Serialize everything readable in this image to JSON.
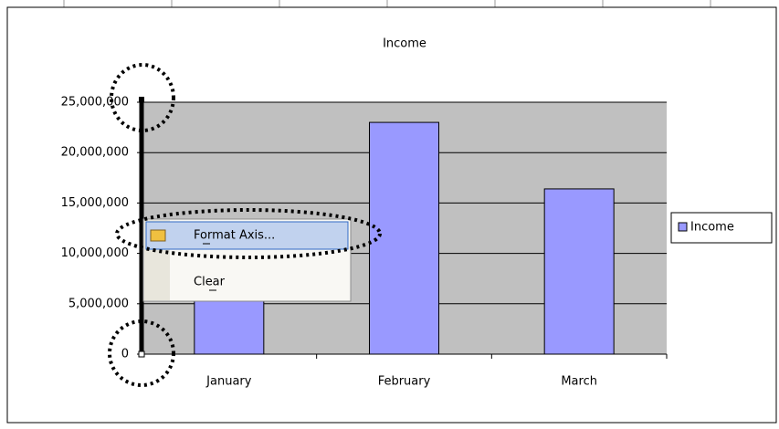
{
  "chart_data": {
    "type": "bar",
    "title": "Income",
    "categories": [
      "January",
      "February",
      "March"
    ],
    "series": [
      {
        "name": "Income",
        "color": "#9999ff",
        "values": [
          10000000,
          23000000,
          16400000
        ]
      }
    ],
    "ylim": [
      0,
      25000000
    ],
    "yticks": [
      0,
      {
        "value": 5000000,
        "label": "5,000,000"
      },
      {
        "value": 10000000,
        "label": "10,000,000"
      },
      {
        "value": 15000000,
        "label": "15,000,000"
      },
      {
        "value": 20000000,
        "label": "20,000,000"
      },
      {
        "value": 25000000,
        "label": "25,000,000"
      }
    ],
    "grid": true,
    "legend": "right"
  },
  "context_menu": {
    "items": [
      "Format Axis...",
      "Clear"
    ]
  }
}
